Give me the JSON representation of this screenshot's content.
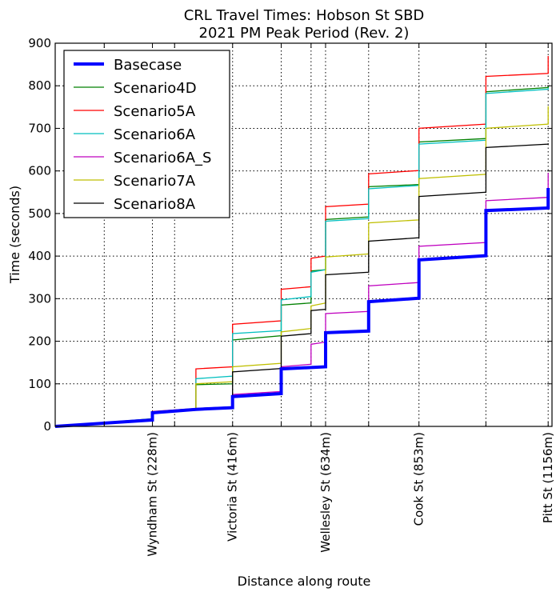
{
  "chart_data": {
    "type": "line",
    "title": [
      "CRL Travel Times: Hobson St SBD",
      "2021 PM Peak Period (Rev. 2)"
    ],
    "xlabel": "Distance along route",
    "ylabel": "Time (seconds)",
    "xlim": [
      0,
      1165
    ],
    "ylim": [
      0,
      900
    ],
    "yticks": [
      0,
      100,
      200,
      300,
      400,
      500,
      600,
      700,
      800,
      900
    ],
    "x_gridlines": [
      115,
      228,
      280,
      416,
      530,
      600,
      634,
      735,
      853,
      1010,
      1156
    ],
    "stations": [
      {
        "label": "Wyndham St (228m)",
        "x": 228
      },
      {
        "label": "Victoria St (416m)",
        "x": 416
      },
      {
        "label": "Wellesley St (634m)",
        "x": 634
      },
      {
        "label": "Cook St (853m)",
        "x": 853
      },
      {
        "label": "Pitt St (1156m)",
        "x": 1156
      }
    ],
    "grid": true,
    "legend_position": "top-left",
    "series": [
      {
        "name": "Basecase",
        "color": "#0000ff",
        "width": 4,
        "x": [
          0,
          228,
          228,
          330,
          416,
          416,
          530,
          530,
          634,
          634,
          735,
          735,
          853,
          853,
          1010,
          1010,
          1156,
          1156
        ],
        "y": [
          0,
          15,
          32,
          40,
          44,
          70,
          77,
          135,
          140,
          220,
          224,
          293,
          301,
          391,
          401,
          507,
          513,
          560
        ]
      },
      {
        "name": "Scenario4D",
        "color": "#008000",
        "width": 1.3,
        "x": [
          0,
          228,
          228,
          330,
          330,
          416,
          416,
          530,
          530,
          600,
          600,
          634,
          634,
          735,
          735,
          853,
          853,
          1010,
          1010,
          1156,
          1156
        ],
        "y": [
          0,
          18,
          33,
          40,
          98,
          100,
          203,
          213,
          285,
          290,
          365,
          368,
          486,
          492,
          563,
          568,
          668,
          676,
          786,
          796,
          800
        ]
      },
      {
        "name": "Scenario5A",
        "color": "#ff0000",
        "width": 1.3,
        "x": [
          0,
          228,
          228,
          330,
          330,
          416,
          416,
          530,
          530,
          600,
          600,
          634,
          634,
          735,
          735,
          853,
          853,
          1010,
          1010,
          1156,
          1156
        ],
        "y": [
          0,
          17,
          35,
          42,
          135,
          140,
          240,
          248,
          322,
          328,
          395,
          400,
          516,
          522,
          593,
          601,
          700,
          710,
          822,
          829,
          870
        ]
      },
      {
        "name": "Scenario6A",
        "color": "#00bfbf",
        "width": 1.3,
        "x": [
          0,
          228,
          228,
          330,
          330,
          416,
          416,
          530,
          530,
          600,
          600,
          634,
          634,
          735,
          735,
          853,
          853,
          1010,
          1010,
          1156,
          1156
        ],
        "y": [
          0,
          16,
          33,
          40,
          112,
          118,
          218,
          225,
          297,
          305,
          362,
          368,
          482,
          488,
          558,
          566,
          663,
          672,
          782,
          792,
          795
        ]
      },
      {
        "name": "Scenario6A_S",
        "color": "#bf00bf",
        "width": 1.3,
        "x": [
          0,
          228,
          228,
          330,
          416,
          416,
          530,
          530,
          600,
          600,
          634,
          634,
          735,
          735,
          853,
          853,
          1010,
          1010,
          1156,
          1156
        ],
        "y": [
          0,
          16,
          33,
          40,
          46,
          75,
          82,
          140,
          146,
          193,
          198,
          265,
          270,
          330,
          338,
          423,
          432,
          530,
          538,
          595
        ]
      },
      {
        "name": "Scenario7A",
        "color": "#bfbf00",
        "width": 1.3,
        "x": [
          0,
          228,
          228,
          330,
          330,
          416,
          416,
          530,
          530,
          600,
          600,
          634,
          634,
          735,
          735,
          853,
          853,
          1010,
          1010,
          1156,
          1156
        ],
        "y": [
          0,
          16,
          33,
          40,
          100,
          105,
          140,
          148,
          222,
          230,
          283,
          290,
          398,
          405,
          478,
          485,
          582,
          592,
          700,
          710,
          752
        ]
      },
      {
        "name": "Scenario8A",
        "color": "#000000",
        "width": 1.3,
        "x": [
          0,
          228,
          228,
          330,
          330,
          416,
          416,
          530,
          530,
          600,
          600,
          634,
          634,
          735,
          735,
          853,
          853,
          1010,
          1010,
          1156,
          1156
        ],
        "y": [
          0,
          16,
          33,
          40,
          42,
          46,
          128,
          136,
          212,
          218,
          272,
          275,
          356,
          362,
          435,
          443,
          540,
          550,
          655,
          663,
          665
        ]
      }
    ]
  }
}
